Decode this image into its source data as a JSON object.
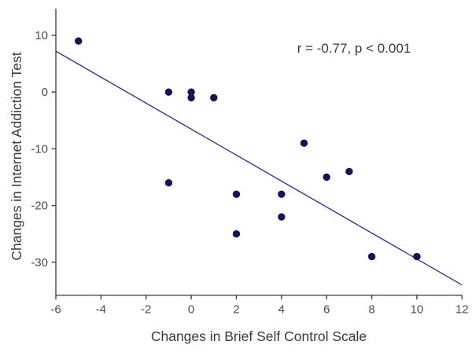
{
  "chart_data": {
    "type": "scatter",
    "title": "",
    "xlabel": "Changes in Brief Self Control Scale",
    "ylabel": "Changes in Internet Addiction Test",
    "annotation": "r = -0.77, p < 0.001",
    "xlim": [
      -6,
      12
    ],
    "ylim": [
      -35.8,
      14.7
    ],
    "x_ticks": [
      -6,
      -4,
      -2,
      0,
      2,
      4,
      6,
      8,
      10,
      12
    ],
    "y_ticks": [
      10,
      0,
      -10,
      -20,
      -30
    ],
    "grid": false,
    "legend": null,
    "series": [
      {
        "name": "scatter-points",
        "points": [
          {
            "x": -5,
            "y": 9
          },
          {
            "x": -1,
            "y": 0
          },
          {
            "x": 0,
            "y": 0
          },
          {
            "x": 0,
            "y": -1
          },
          {
            "x": 1,
            "y": -1
          },
          {
            "x": -1,
            "y": -16
          },
          {
            "x": 2,
            "y": -18
          },
          {
            "x": 2,
            "y": -25
          },
          {
            "x": 4,
            "y": -18
          },
          {
            "x": 4,
            "y": -22
          },
          {
            "x": 5,
            "y": -9
          },
          {
            "x": 6,
            "y": -15
          },
          {
            "x": 7,
            "y": -14
          },
          {
            "x": 8,
            "y": -29
          },
          {
            "x": 10,
            "y": -29
          }
        ]
      }
    ],
    "trend_line": {
      "x1": -6,
      "y1": 7.2,
      "x2": 12,
      "y2": -34,
      "slope": -2.29,
      "intercept": -6.5
    },
    "colors": {
      "marker": "#14145a",
      "trend_line": "#34348c",
      "axis": "#454545",
      "tick_label": "#4a4a4a",
      "axis_title": "#3a3a3a",
      "annotation": "#3a3a3a",
      "background": "#ffffff"
    }
  }
}
